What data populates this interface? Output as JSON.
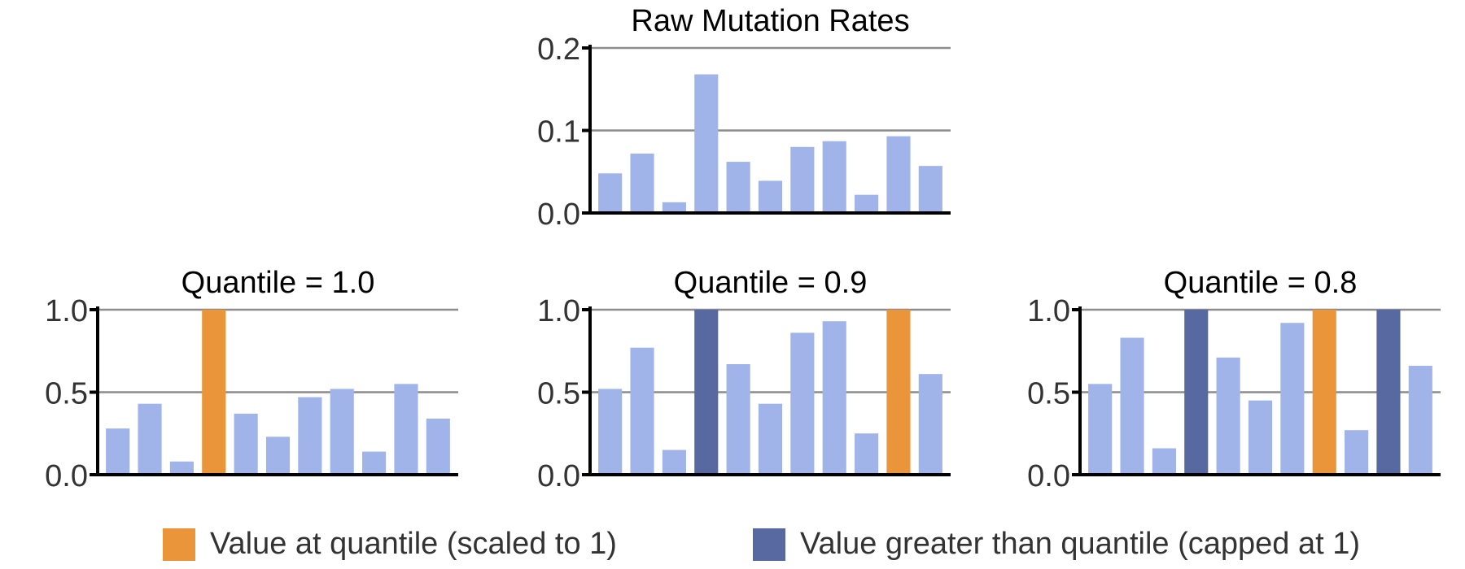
{
  "chart_data": [
    {
      "type": "bar",
      "title": "Raw Mutation Rates",
      "ylim": [
        0,
        0.2
      ],
      "yticks": [
        "0.0",
        "0.1",
        "0.2"
      ],
      "grid": true,
      "values": [
        0.048,
        0.072,
        0.013,
        0.168,
        0.062,
        0.039,
        0.08,
        0.087,
        0.022,
        0.093,
        0.057
      ],
      "highlight": [
        "normal",
        "normal",
        "normal",
        "normal",
        "normal",
        "normal",
        "normal",
        "normal",
        "normal",
        "normal",
        "normal"
      ]
    },
    {
      "type": "bar",
      "title": "Quantile = 1.0",
      "ylim": [
        0,
        1.0
      ],
      "yticks": [
        "0.0",
        "0.5",
        "1.0"
      ],
      "grid": true,
      "values": [
        0.28,
        0.43,
        0.08,
        1.0,
        0.37,
        0.23,
        0.47,
        0.52,
        0.14,
        0.55,
        0.34
      ],
      "highlight": [
        "normal",
        "normal",
        "normal",
        "at-quantile",
        "normal",
        "normal",
        "normal",
        "normal",
        "normal",
        "normal",
        "normal"
      ]
    },
    {
      "type": "bar",
      "title": "Quantile = 0.9",
      "ylim": [
        0,
        1.0
      ],
      "yticks": [
        "0.0",
        "0.5",
        "1.0"
      ],
      "grid": true,
      "values": [
        0.52,
        0.77,
        0.15,
        1.0,
        0.67,
        0.43,
        0.86,
        0.93,
        0.25,
        1.0,
        0.61
      ],
      "highlight": [
        "normal",
        "normal",
        "normal",
        "capped",
        "normal",
        "normal",
        "normal",
        "normal",
        "normal",
        "at-quantile",
        "normal"
      ]
    },
    {
      "type": "bar",
      "title": "Quantile = 0.8",
      "ylim": [
        0,
        1.0
      ],
      "yticks": [
        "0.0",
        "0.5",
        "1.0"
      ],
      "grid": true,
      "values": [
        0.55,
        0.83,
        0.16,
        1.0,
        0.71,
        0.45,
        0.92,
        1.0,
        0.27,
        1.0,
        0.66
      ],
      "highlight": [
        "normal",
        "normal",
        "normal",
        "capped",
        "normal",
        "normal",
        "normal",
        "at-quantile",
        "normal",
        "capped",
        "normal"
      ]
    }
  ],
  "legend": {
    "placement": "bottom",
    "items": [
      {
        "label": "Value at quantile (scaled to 1)",
        "color": "#EA9539"
      },
      {
        "label": "Value greater than quantile (capped at 1)",
        "color": "#5868A0"
      }
    ]
  },
  "colors": {
    "normal": "#A0B4EA",
    "at-quantile": "#EA9539",
    "capped": "#5868A0",
    "grid": "#8C8C8C",
    "axis": "#000000"
  }
}
